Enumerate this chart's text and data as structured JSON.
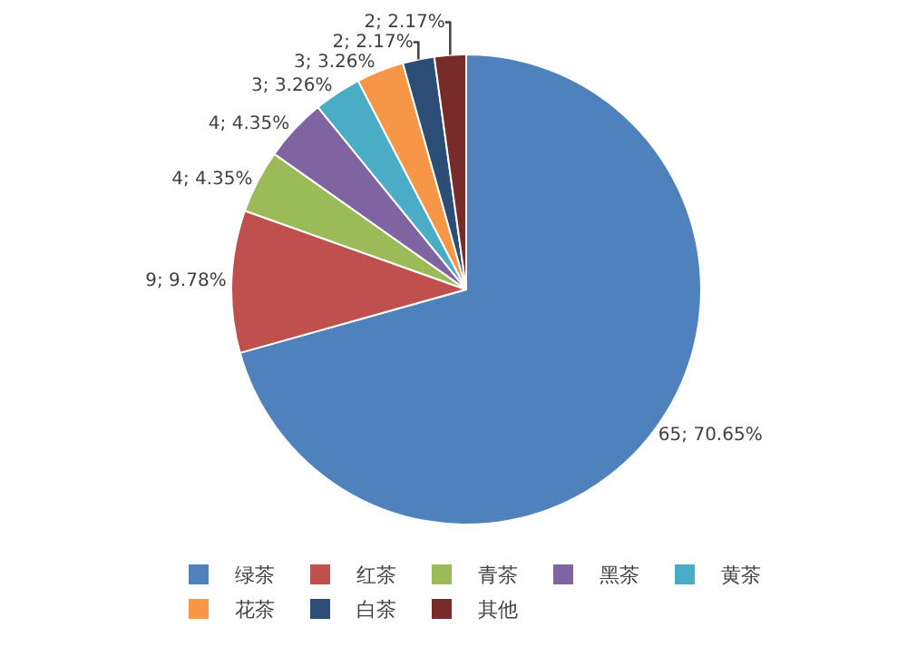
{
  "chart_data": {
    "type": "pie",
    "categories": [
      "绿茶",
      "红茶",
      "青茶",
      "黑茶",
      "黄茶",
      "花茶",
      "白茶",
      "其他"
    ],
    "values": [
      65,
      9,
      4,
      4,
      3,
      3,
      2,
      2
    ],
    "value_labels": [
      "65; 70.65%",
      "9; 9.78%",
      "4; 4.35%",
      "4; 4.35%",
      "3; 3.26%",
      "3; 3.26%",
      "2; 2.17%",
      "2; 2.17%"
    ],
    "colors": [
      "#4f81bd",
      "#c0504d",
      "#9bbb59",
      "#8064a2",
      "#4bacc6",
      "#f79646",
      "#2c4d75",
      "#772c2a"
    ],
    "legend": "bottom"
  }
}
